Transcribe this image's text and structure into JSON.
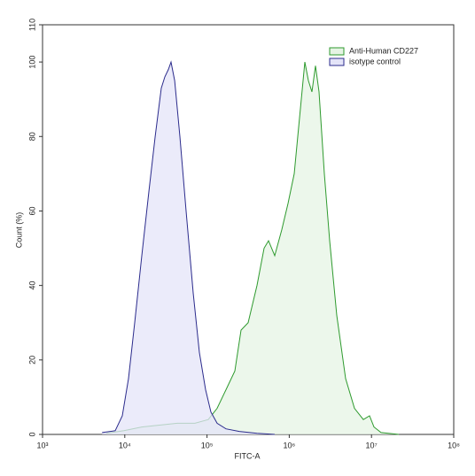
{
  "chart_data": {
    "type": "area",
    "x_label": "FITC-A",
    "y_label": "Count (%)",
    "log_x": true,
    "legend": "top-right",
    "xlim": [
      1000,
      100000000
    ],
    "xticks": [
      {
        "value": 1000,
        "label": "10³"
      },
      {
        "value": 10000,
        "label": "10⁴"
      },
      {
        "value": 100000,
        "label": "10⁵"
      },
      {
        "value": 1000000,
        "label": "10⁶"
      },
      {
        "value": 10000000,
        "label": "10⁷"
      },
      {
        "value": 100000000,
        "label": "10⁸"
      }
    ],
    "ylim": [
      0,
      110
    ],
    "yticks": [
      0,
      20,
      40,
      60,
      80,
      100,
      110
    ],
    "series": [
      {
        "name": "Anti-Human CD227",
        "color": "#2e9a2e",
        "fill": "#e6f4e4",
        "x": [
          5970,
          9790,
          16100,
          26400,
          43400,
          71300,
          103500,
          132700,
          170200,
          217800,
          259400,
          316200,
          405500,
          494300,
          559700,
          665700,
          811300,
          965900,
          1148000,
          1333000,
          1548000,
          1709000,
          1888000,
          2084000,
          2301000,
          2671000,
          3098000,
          3782000,
          4842000,
          6205000,
          7955000,
          9468000,
          10720000,
          13070000,
          21460000
        ],
        "values": [
          0.3,
          1,
          2,
          2.5,
          3,
          3,
          4,
          7,
          12,
          17,
          28,
          30,
          40,
          50,
          52,
          48,
          55,
          62,
          70,
          85,
          100,
          95,
          92,
          99,
          92,
          70,
          52,
          32,
          15,
          7,
          4,
          5,
          2,
          0.5,
          0
        ]
      },
      {
        "name": "isotype control",
        "color": "#2b2b8c",
        "fill": "#e4e4f8",
        "x": [
          5300,
          7650,
          9330,
          11100,
          13200,
          16100,
          19600,
          23400,
          27800,
          30700,
          33900,
          36500,
          40400,
          46800,
          55700,
          67900,
          80700,
          96100,
          111500,
          132700,
          170200,
          246800,
          405500,
          665700
        ],
        "values": [
          0.5,
          1,
          5,
          15,
          30,
          48,
          65,
          80,
          93,
          96,
          98,
          100,
          95,
          80,
          60,
          38,
          22,
          12,
          6,
          3,
          1.5,
          0.8,
          0.3,
          0
        ]
      }
    ]
  }
}
